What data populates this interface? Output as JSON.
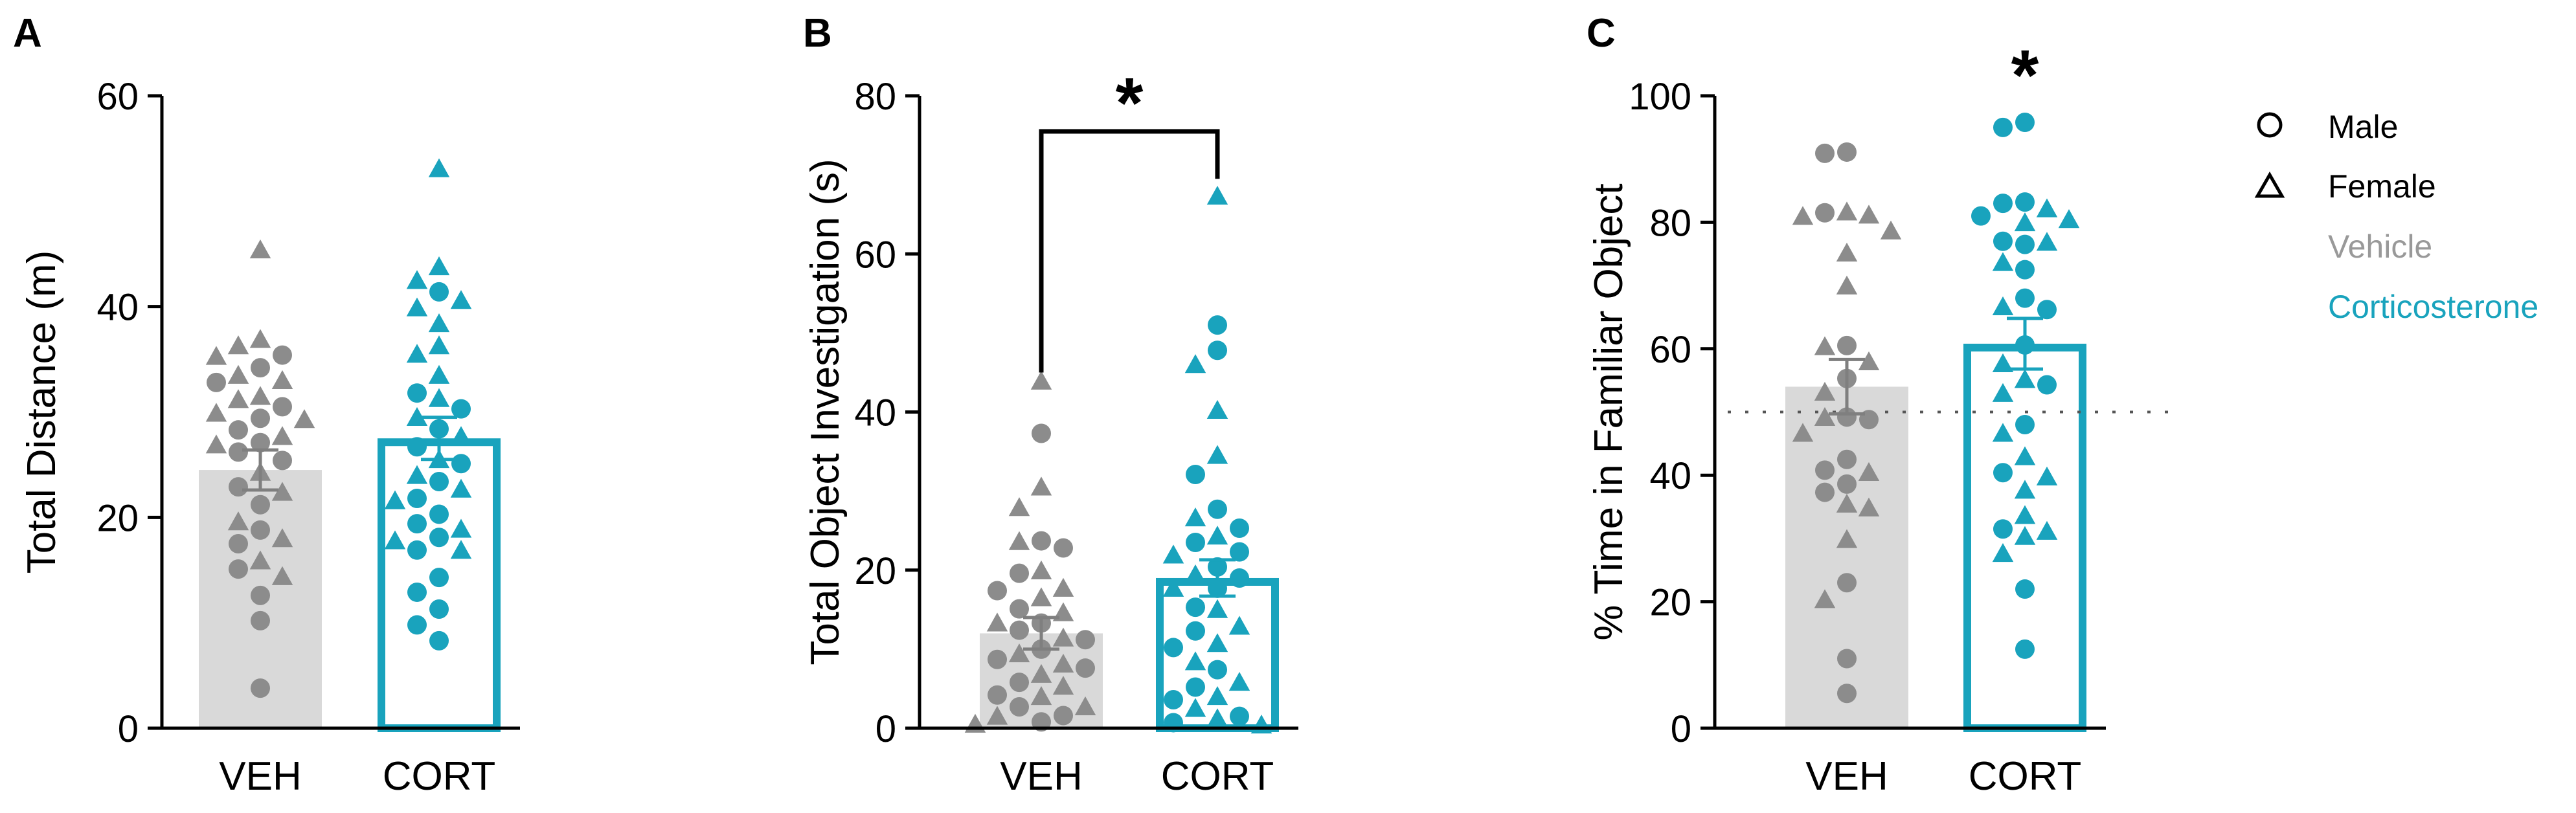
{
  "colors": {
    "veh_bar": "#d9d9d9",
    "veh_point": "#8c8c8c",
    "veh_err": "#7f7f7f",
    "cort": "#19a3bd",
    "axis": "#000000",
    "vehicle_legend_text": "#999999",
    "cort_legend_text": "#19a3bd"
  },
  "legend": {
    "male": "Male",
    "female": "Female",
    "vehicle": "Vehicle",
    "corticosterone": "Corticosterone"
  },
  "chart_data": [
    {
      "type": "bar",
      "panel": "A",
      "ylabel": "Total Distance (m)",
      "xlabel": "",
      "categories": [
        "VEH",
        "CORT"
      ],
      "ylim": [
        0,
        60
      ],
      "yticks": [
        0,
        20,
        40,
        60
      ],
      "means": [
        24.5,
        27.5
      ],
      "sem": [
        1.9,
        2.0
      ],
      "significance": [],
      "points": {
        "VEH": {
          "female": [
            45.3,
            36.8,
            36.2,
            35.2,
            33.4,
            32.9,
            31.4,
            31.1,
            29.8,
            29.2,
            27.6,
            26.8,
            24.2,
            22.3,
            19.5,
            17.9,
            15.8,
            14.3
          ],
          "male": [
            35.4,
            34.2,
            32.8,
            30.5,
            29.4,
            28.3,
            27.1,
            26.2,
            25.4,
            22.9,
            21.2,
            18.8,
            17.5,
            15.1,
            12.6,
            10.2,
            3.8
          ]
        },
        "CORT": {
          "female": [
            53.0,
            43.7,
            42.4,
            40.5,
            39.8,
            38.3,
            36.2,
            35.4,
            33.4,
            31.2,
            29.4,
            27.6,
            25.4,
            23.9,
            22.6,
            21.5,
            18.8,
            17.7,
            16.8
          ],
          "male": [
            41.4,
            31.8,
            30.3,
            28.4,
            26.7,
            25.1,
            23.4,
            21.8,
            20.3,
            19.4,
            18.1,
            16.9,
            14.3,
            12.9,
            11.3,
            9.8,
            8.3
          ]
        }
      }
    },
    {
      "type": "bar",
      "panel": "B",
      "ylabel": "Total Object Investigation (s)",
      "xlabel": "",
      "categories": [
        "VEH",
        "CORT"
      ],
      "ylim": [
        0,
        80
      ],
      "yticks": [
        0,
        20,
        40,
        60,
        80
      ],
      "means": [
        12.0,
        19.0
      ],
      "sem": [
        2.0,
        2.3
      ],
      "significance": [
        {
          "from": "VEH",
          "to": "CORT",
          "label": "*",
          "y": 77
        }
      ],
      "points": {
        "VEH": {
          "female": [
            43.8,
            30.4,
            27.8,
            23.5,
            19.8,
            17.6,
            16.4,
            14.5,
            13.2,
            11.3,
            9.3,
            8.0,
            6.7,
            5.2,
            3.9,
            2.6,
            1.4,
            0.4
          ],
          "male": [
            37.3,
            23.7,
            22.8,
            19.6,
            17.4,
            15.1,
            13.3,
            12.4,
            11.2,
            10.0,
            8.7,
            7.6,
            5.8,
            4.2,
            2.7,
            1.6,
            0.8
          ]
        },
        "CORT": {
          "female": [
            67.2,
            45.9,
            40.1,
            34.4,
            26.5,
            24.2,
            21.8,
            19.3,
            17.6,
            14.9,
            12.8,
            10.6,
            8.3,
            5.7,
            3.9,
            2.4,
            1.1,
            0.3
          ],
          "male": [
            51.0,
            47.8,
            32.1,
            27.7,
            25.3,
            23.5,
            22.3,
            20.4,
            19.0,
            17.7,
            15.3,
            12.3,
            10.2,
            7.4,
            5.2,
            3.6,
            1.5,
            0.7
          ]
        }
      }
    },
    {
      "type": "bar",
      "panel": "C",
      "ylabel": "% Time in Familiar Object",
      "xlabel": "",
      "categories": [
        "VEH",
        "CORT"
      ],
      "ylim": [
        0,
        100
      ],
      "yticks": [
        0,
        20,
        40,
        60,
        80,
        100
      ],
      "means": [
        54.0,
        60.8
      ],
      "sem": [
        4.3,
        4.0
      ],
      "significance": [
        {
          "over": "CORT",
          "label": "*",
          "y": 104
        }
      ],
      "reference_line": 50,
      "points": {
        "VEH": {
          "female": [
            81.5,
            81.0,
            80.8,
            78.5,
            75.0,
            69.8,
            60.2,
            57.8,
            53.0,
            49.0,
            46.5,
            40.3,
            35.3,
            34.7,
            29.7,
            20.2
          ],
          "male": [
            91.1,
            90.9,
            81.5,
            60.5,
            55.3,
            49.2,
            48.8,
            42.5,
            40.8,
            38.6,
            37.3,
            23.0,
            11.0,
            5.5
          ]
        },
        "CORT": {
          "female": [
            82.0,
            80.3,
            79.8,
            76.7,
            73.5,
            66.5,
            57.5,
            55.0,
            52.8,
            46.5,
            42.8,
            39.6,
            37.5,
            33.5,
            31.0,
            30.2,
            27.5
          ],
          "male": [
            95.8,
            95.0,
            83.2,
            83.0,
            81.0,
            77.0,
            76.5,
            72.5,
            68.0,
            66.2,
            60.6,
            54.3,
            48.0,
            40.4,
            31.5,
            22.0,
            12.5
          ]
        }
      }
    }
  ]
}
